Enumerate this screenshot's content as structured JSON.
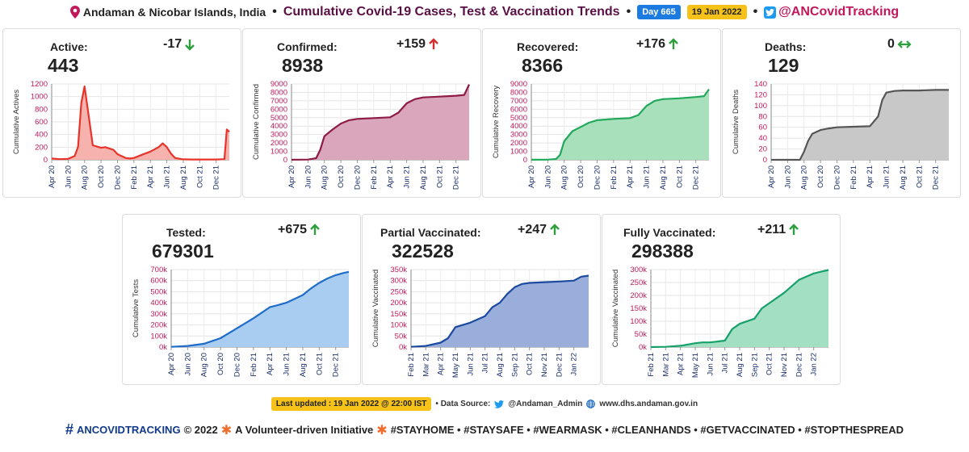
{
  "header": {
    "region": "Andaman & Nicobar Islands, India",
    "separator": "•",
    "title": "Cumulative Covid-19 Cases, Test & Vaccination Trends",
    "day_badge": "Day 665",
    "date_badge": "19 Jan 2022",
    "handle": "@ANCovidTracking"
  },
  "cards": [
    {
      "key": "active",
      "label": "Active:",
      "value": "443",
      "delta": "-17",
      "direction": "down",
      "arrow_color": "#2e9e3e"
    },
    {
      "key": "confirmed",
      "label": "Confirmed:",
      "value": "8938",
      "delta": "+159",
      "direction": "up",
      "arrow_color": "#d32f2f"
    },
    {
      "key": "recovered",
      "label": "Recovered:",
      "value": "8366",
      "delta": "+176",
      "direction": "up",
      "arrow_color": "#2e9e3e"
    },
    {
      "key": "deaths",
      "label": "Deaths:",
      "value": "129",
      "delta": "0",
      "direction": "flat",
      "arrow_color": "#2e9e3e"
    },
    {
      "key": "tested",
      "label": "Tested:",
      "value": "679301",
      "delta": "+675",
      "direction": "up",
      "arrow_color": "#2e9e3e"
    },
    {
      "key": "partial",
      "label": "Partial Vaccinated:",
      "value": "322528",
      "delta": "+247",
      "direction": "up",
      "arrow_color": "#2e9e3e"
    },
    {
      "key": "fully",
      "label": "Fully Vaccinated:",
      "value": "298388",
      "delta": "+211",
      "direction": "up",
      "arrow_color": "#2e9e3e"
    }
  ],
  "chart_data": [
    {
      "key": "active",
      "type": "area",
      "ylabel": "Cumulative Actives",
      "ylim": [
        0,
        1200
      ],
      "yticks": [
        0,
        200,
        400,
        600,
        800,
        1000,
        1200
      ],
      "ytick_labels": [
        "0",
        "200",
        "400",
        "600",
        "800",
        "1000",
        "1200"
      ],
      "xlim": [
        0,
        21.6
      ],
      "xticks": [
        0,
        2,
        4,
        6,
        8,
        10,
        12,
        14,
        16,
        18,
        20
      ],
      "xtick_labels": [
        "Apr 20",
        "Jun 20",
        "Aug 20",
        "Oct 20",
        "Dec 20",
        "Feb 21",
        "Apr 21",
        "Jun 21",
        "Aug 21",
        "Oct 21",
        "Dec 21"
      ],
      "line_color": "#e8332a",
      "fill_color": "#f6b3ae",
      "grid": true,
      "x": [
        0,
        1,
        2,
        2.8,
        3.2,
        3.6,
        4.0,
        4.5,
        5,
        6,
        6.5,
        7.5,
        8,
        9,
        9.5,
        10,
        11,
        12,
        13,
        13.5,
        14,
        14.5,
        15,
        16,
        17,
        18,
        19,
        20,
        21,
        21.3,
        21.6
      ],
      "y": [
        20,
        10,
        15,
        60,
        200,
        900,
        1160,
        700,
        230,
        190,
        200,
        160,
        90,
        30,
        20,
        30,
        80,
        130,
        200,
        260,
        200,
        100,
        30,
        8,
        5,
        5,
        5,
        5,
        10,
        480,
        443
      ]
    },
    {
      "key": "confirmed",
      "type": "area",
      "ylabel": "Cumulative Confirmed",
      "ylim": [
        0,
        9000
      ],
      "yticks": [
        0,
        1000,
        2000,
        3000,
        4000,
        5000,
        6000,
        7000,
        8000,
        9000
      ],
      "ytick_labels": [
        "0",
        "1000",
        "2000",
        "3000",
        "4000",
        "5000",
        "6000",
        "7000",
        "8000",
        "9000"
      ],
      "xlim": [
        0,
        21.6
      ],
      "xticks": [
        0,
        2,
        4,
        6,
        8,
        10,
        12,
        14,
        16,
        18,
        20
      ],
      "xtick_labels": [
        "Apr 20",
        "Jun 20",
        "Aug 20",
        "Oct 20",
        "Dec 20",
        "Feb 21",
        "Apr 21",
        "Jun 21",
        "Aug 21",
        "Oct 21",
        "Dec 21"
      ],
      "line_color": "#8e1b45",
      "fill_color": "#d9a6bb",
      "grid": true,
      "x": [
        0,
        2,
        3,
        3.5,
        4,
        5,
        6,
        7,
        8,
        10,
        12,
        13,
        14,
        15,
        16,
        18,
        20,
        21,
        21.6
      ],
      "y": [
        10,
        30,
        200,
        1200,
        2800,
        3600,
        4300,
        4700,
        4850,
        4950,
        5050,
        5600,
        6700,
        7200,
        7400,
        7500,
        7600,
        7700,
        8938
      ]
    },
    {
      "key": "recovered",
      "type": "area",
      "ylabel": "Cumulative Recovery",
      "ylim": [
        0,
        9000
      ],
      "yticks": [
        0,
        1000,
        2000,
        3000,
        4000,
        5000,
        6000,
        7000,
        8000,
        9000
      ],
      "ytick_labels": [
        "0",
        "1000",
        "2000",
        "3000",
        "4000",
        "5000",
        "6000",
        "7000",
        "8000",
        "9000"
      ],
      "xlim": [
        0,
        21.6
      ],
      "xticks": [
        0,
        2,
        4,
        6,
        8,
        10,
        12,
        14,
        16,
        18,
        20
      ],
      "xtick_labels": [
        "Apr 20",
        "Jun 20",
        "Aug 20",
        "Oct 20",
        "Dec 20",
        "Feb 21",
        "Apr 21",
        "Jun 21",
        "Aug 21",
        "Oct 21",
        "Dec 21"
      ],
      "line_color": "#22a85a",
      "fill_color": "#a8e0bc",
      "grid": true,
      "x": [
        0,
        2,
        3,
        3.5,
        4,
        5,
        6,
        7,
        8,
        10,
        12,
        13,
        14,
        15,
        16,
        18,
        20,
        21,
        21.6
      ],
      "y": [
        5,
        20,
        100,
        600,
        2200,
        3400,
        3900,
        4400,
        4700,
        4850,
        4950,
        5300,
        6400,
        7000,
        7200,
        7300,
        7450,
        7550,
        8366
      ]
    },
    {
      "key": "deaths",
      "type": "area",
      "ylabel": "Cumulative Deaths",
      "ylim": [
        0,
        140
      ],
      "yticks": [
        0,
        20,
        40,
        60,
        80,
        100,
        120,
        140
      ],
      "ytick_labels": [
        "0",
        "20",
        "40",
        "60",
        "80",
        "100",
        "120",
        "140"
      ],
      "xlim": [
        0,
        21.6
      ],
      "xticks": [
        0,
        2,
        4,
        6,
        8,
        10,
        12,
        14,
        16,
        18,
        20
      ],
      "xtick_labels": [
        "Apr 20",
        "Jun 20",
        "Aug 20",
        "Oct 20",
        "Dec 20",
        "Feb 21",
        "Apr 21",
        "Jun 21",
        "Aug 21",
        "Oct 21",
        "Dec 21"
      ],
      "line_color": "#555555",
      "fill_color": "#c8c8c8",
      "grid": true,
      "x": [
        0,
        3.5,
        4,
        4.5,
        5,
        6,
        7,
        8,
        10,
        12,
        13,
        13.5,
        14,
        15,
        16,
        18,
        20,
        21.6
      ],
      "y": [
        0,
        0,
        15,
        35,
        48,
        55,
        58,
        60,
        61,
        62,
        80,
        110,
        124,
        127,
        128,
        128,
        129,
        129
      ]
    },
    {
      "key": "tested",
      "type": "area",
      "ylabel": "Cumulative Tests",
      "ylim": [
        0,
        700000
      ],
      "yticks": [
        0,
        100000,
        200000,
        300000,
        400000,
        500000,
        600000,
        700000
      ],
      "ytick_labels": [
        "0k",
        "100k",
        "200k",
        "300k",
        "400k",
        "500k",
        "600k",
        "700k"
      ],
      "xlim": [
        0,
        21.6
      ],
      "xticks": [
        0,
        2,
        4,
        6,
        8,
        10,
        12,
        14,
        16,
        18,
        20
      ],
      "xtick_labels": [
        "Apr 20",
        "Jun 20",
        "Aug 20",
        "Oct 20",
        "Dec 20",
        "Feb 21",
        "Apr 21",
        "Jun 21",
        "Aug 21",
        "Oct 21",
        "Dec 21"
      ],
      "line_color": "#1f6cc9",
      "fill_color": "#a9cdf0",
      "grid": true,
      "x": [
        0,
        2,
        4,
        6,
        8,
        10,
        12,
        13,
        14,
        16,
        17,
        18,
        19,
        20,
        21,
        21.6
      ],
      "y": [
        2000,
        10000,
        30000,
        80000,
        170000,
        260000,
        360000,
        380000,
        400000,
        470000,
        530000,
        580000,
        620000,
        650000,
        670000,
        679301
      ]
    },
    {
      "key": "partial",
      "type": "area",
      "ylabel": "Cumulative Vaccinated",
      "ylim": [
        0,
        350000
      ],
      "yticks": [
        0,
        50000,
        100000,
        150000,
        200000,
        250000,
        300000,
        350000
      ],
      "ytick_labels": [
        "0k",
        "50k",
        "100k",
        "150k",
        "200k",
        "250k",
        "300k",
        "350k"
      ],
      "xlim": [
        0,
        12
      ],
      "xticks": [
        0,
        1,
        2,
        3,
        4,
        5,
        6,
        7,
        8,
        9,
        10,
        11
      ],
      "xtick_labels": [
        "Feb 21",
        "Mar 21",
        "Apr 21",
        "May 21",
        "Jun 21",
        "Jul 21",
        "Aug 21",
        "Sep 21",
        "Oct 21",
        "Nov 21",
        "Dec 21",
        "Jan 22"
      ],
      "line_color": "#1c4aa0",
      "fill_color": "#9aaedb",
      "grid": true,
      "x": [
        0,
        1,
        2,
        2.5,
        3,
        3.5,
        4,
        5,
        5.5,
        6,
        6.5,
        7,
        7.5,
        8,
        9,
        10,
        11,
        11.5,
        12
      ],
      "y": [
        1000,
        5000,
        20000,
        40000,
        90000,
        100000,
        110000,
        140000,
        180000,
        200000,
        240000,
        270000,
        285000,
        290000,
        293000,
        296000,
        300000,
        318000,
        322528
      ]
    },
    {
      "key": "fully",
      "type": "area",
      "ylabel": "Cumulative Vaccinated",
      "ylim": [
        0,
        300000
      ],
      "yticks": [
        0,
        50000,
        100000,
        150000,
        200000,
        250000,
        300000
      ],
      "ytick_labels": [
        "0k",
        "50k",
        "100k",
        "150k",
        "200k",
        "250k",
        "300k"
      ],
      "xlim": [
        0,
        12
      ],
      "xticks": [
        0,
        1,
        2,
        3,
        4,
        5,
        6,
        7,
        8,
        9,
        10,
        11
      ],
      "xtick_labels": [
        "Feb 21",
        "Mar 21",
        "Apr 21",
        "May 21",
        "Jun 21",
        "Jul 21",
        "Aug 21",
        "Sep 21",
        "Oct 21",
        "Nov 21",
        "Dec 21",
        "Jan 22"
      ],
      "line_color": "#17a06a",
      "fill_color": "#a3dfc3",
      "grid": true,
      "x": [
        0,
        1,
        2,
        3,
        3.5,
        4,
        5,
        5.5,
        6,
        7,
        7.5,
        8,
        9,
        10,
        11,
        11.5,
        12
      ],
      "y": [
        0,
        1000,
        5000,
        15000,
        18000,
        18000,
        25000,
        70000,
        90000,
        110000,
        150000,
        170000,
        210000,
        260000,
        285000,
        292000,
        298388
      ]
    }
  ],
  "footer": {
    "last_updated": "Last updated : 19 Jan 2022 @ 22:00 IST",
    "data_source_label": "• Data Source:",
    "source_handle": "@Andaman_Admin",
    "source_site": "www.dhs.andaman.gov.in",
    "hashtag_brand": "ANCOVIDTRACKING",
    "copyright": "© 2022",
    "initiative": "A Volunteer-driven Initiative",
    "slogans": "#STAYHOME • #STAYSAFE • #WEARMASK • #CLEANHANDS • #GETVACCINATED • #STOPTHESPREAD"
  }
}
